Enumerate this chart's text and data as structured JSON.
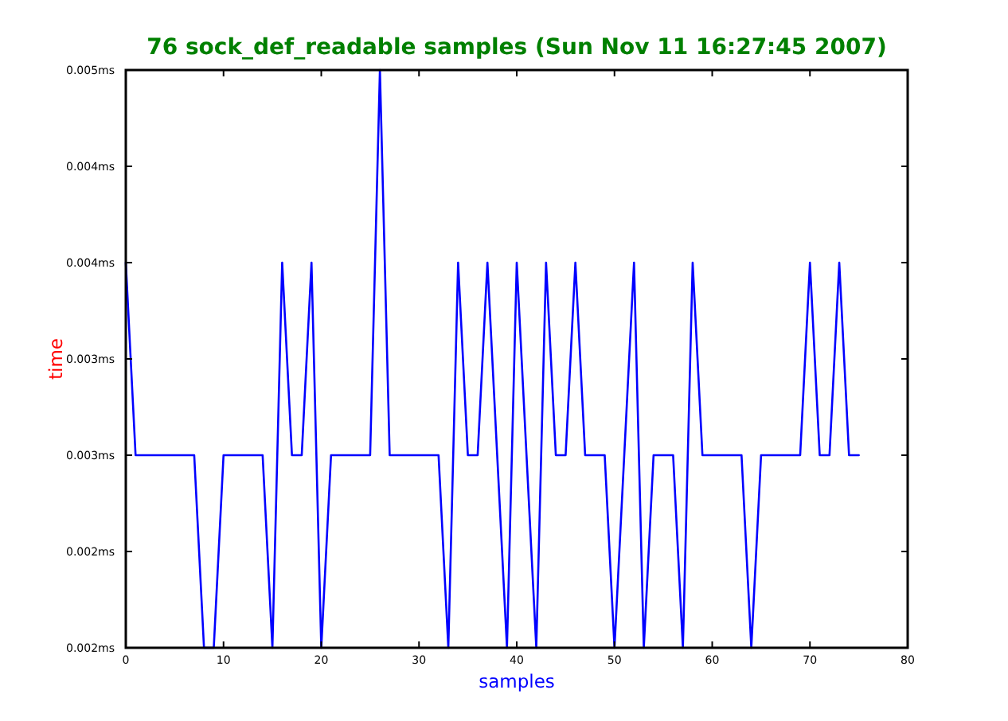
{
  "chart_data": {
    "type": "line",
    "title": "76 sock_def_readable samples (Sun Nov 11 16:27:45 2007)",
    "xlabel": "samples",
    "ylabel": "time",
    "x": [
      0,
      1,
      2,
      3,
      4,
      5,
      6,
      7,
      8,
      9,
      10,
      11,
      12,
      13,
      14,
      15,
      16,
      17,
      18,
      19,
      20,
      21,
      22,
      23,
      24,
      25,
      26,
      27,
      28,
      29,
      30,
      31,
      32,
      33,
      34,
      35,
      36,
      37,
      38,
      39,
      40,
      41,
      42,
      43,
      44,
      45,
      46,
      47,
      48,
      49,
      50,
      51,
      52,
      53,
      54,
      55,
      56,
      57,
      58,
      59,
      60,
      61,
      62,
      63,
      64,
      65,
      66,
      67,
      68,
      69,
      70,
      71,
      72,
      73,
      74,
      75
    ],
    "series": [
      {
        "color": "#0000ff",
        "values": [
          0.004,
          0.003,
          0.003,
          0.003,
          0.003,
          0.003,
          0.003,
          0.003,
          0.002,
          0.002,
          0.003,
          0.003,
          0.003,
          0.003,
          0.003,
          0.002,
          0.004,
          0.003,
          0.003,
          0.004,
          0.002,
          0.003,
          0.003,
          0.003,
          0.003,
          0.003,
          0.005,
          0.003,
          0.003,
          0.003,
          0.003,
          0.003,
          0.003,
          0.002,
          0.004,
          0.003,
          0.003,
          0.004,
          0.003,
          0.002,
          0.004,
          0.003,
          0.002,
          0.004,
          0.003,
          0.003,
          0.004,
          0.003,
          0.003,
          0.003,
          0.002,
          0.003,
          0.004,
          0.002,
          0.003,
          0.003,
          0.003,
          0.002,
          0.004,
          0.003,
          0.003,
          0.003,
          0.003,
          0.003,
          0.002,
          0.003,
          0.003,
          0.003,
          0.003,
          0.003,
          0.004,
          0.003,
          0.003,
          0.004,
          0.003,
          0.003
        ]
      }
    ],
    "xlim": [
      0,
      80
    ],
    "xticks": [
      0,
      10,
      20,
      30,
      40,
      50,
      60,
      70,
      80
    ],
    "ylim": [
      0.002,
      0.005
    ],
    "yticks": [
      {
        "value": 0.002,
        "label": "0.002ms"
      },
      {
        "value": 0.0025,
        "label": "0.002ms"
      },
      {
        "value": 0.003,
        "label": "0.003ms"
      },
      {
        "value": 0.0035,
        "label": "0.003ms"
      },
      {
        "value": 0.004,
        "label": "0.004ms"
      },
      {
        "value": 0.0045,
        "label": "0.004ms"
      },
      {
        "value": 0.005,
        "label": "0.005ms"
      }
    ]
  }
}
